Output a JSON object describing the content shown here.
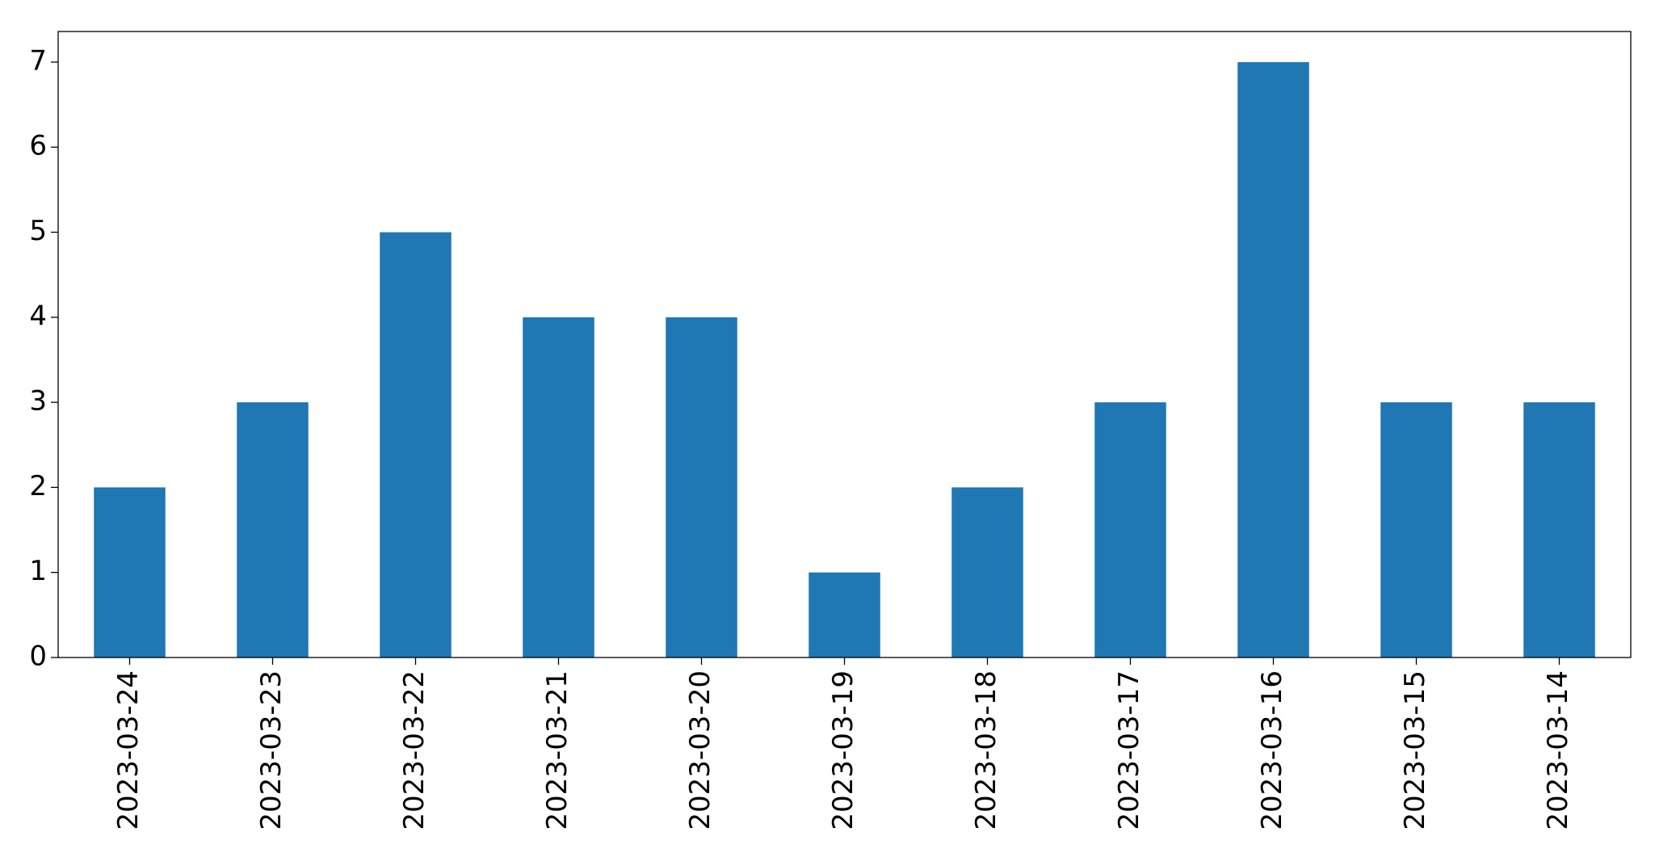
{
  "chart_data": {
    "type": "bar",
    "categories": [
      "2023-03-24",
      "2023-03-23",
      "2023-03-22",
      "2023-03-21",
      "2023-03-20",
      "2023-03-19",
      "2023-03-18",
      "2023-03-17",
      "2023-03-16",
      "2023-03-15",
      "2023-03-14"
    ],
    "values": [
      2,
      3,
      5,
      4,
      4,
      1,
      2,
      3,
      7,
      3,
      3
    ],
    "color": "#1f77b4",
    "ylim": [
      0,
      7.36
    ],
    "yticks": [
      0,
      1,
      2,
      3,
      4,
      5,
      6,
      7
    ],
    "grid": false
  }
}
